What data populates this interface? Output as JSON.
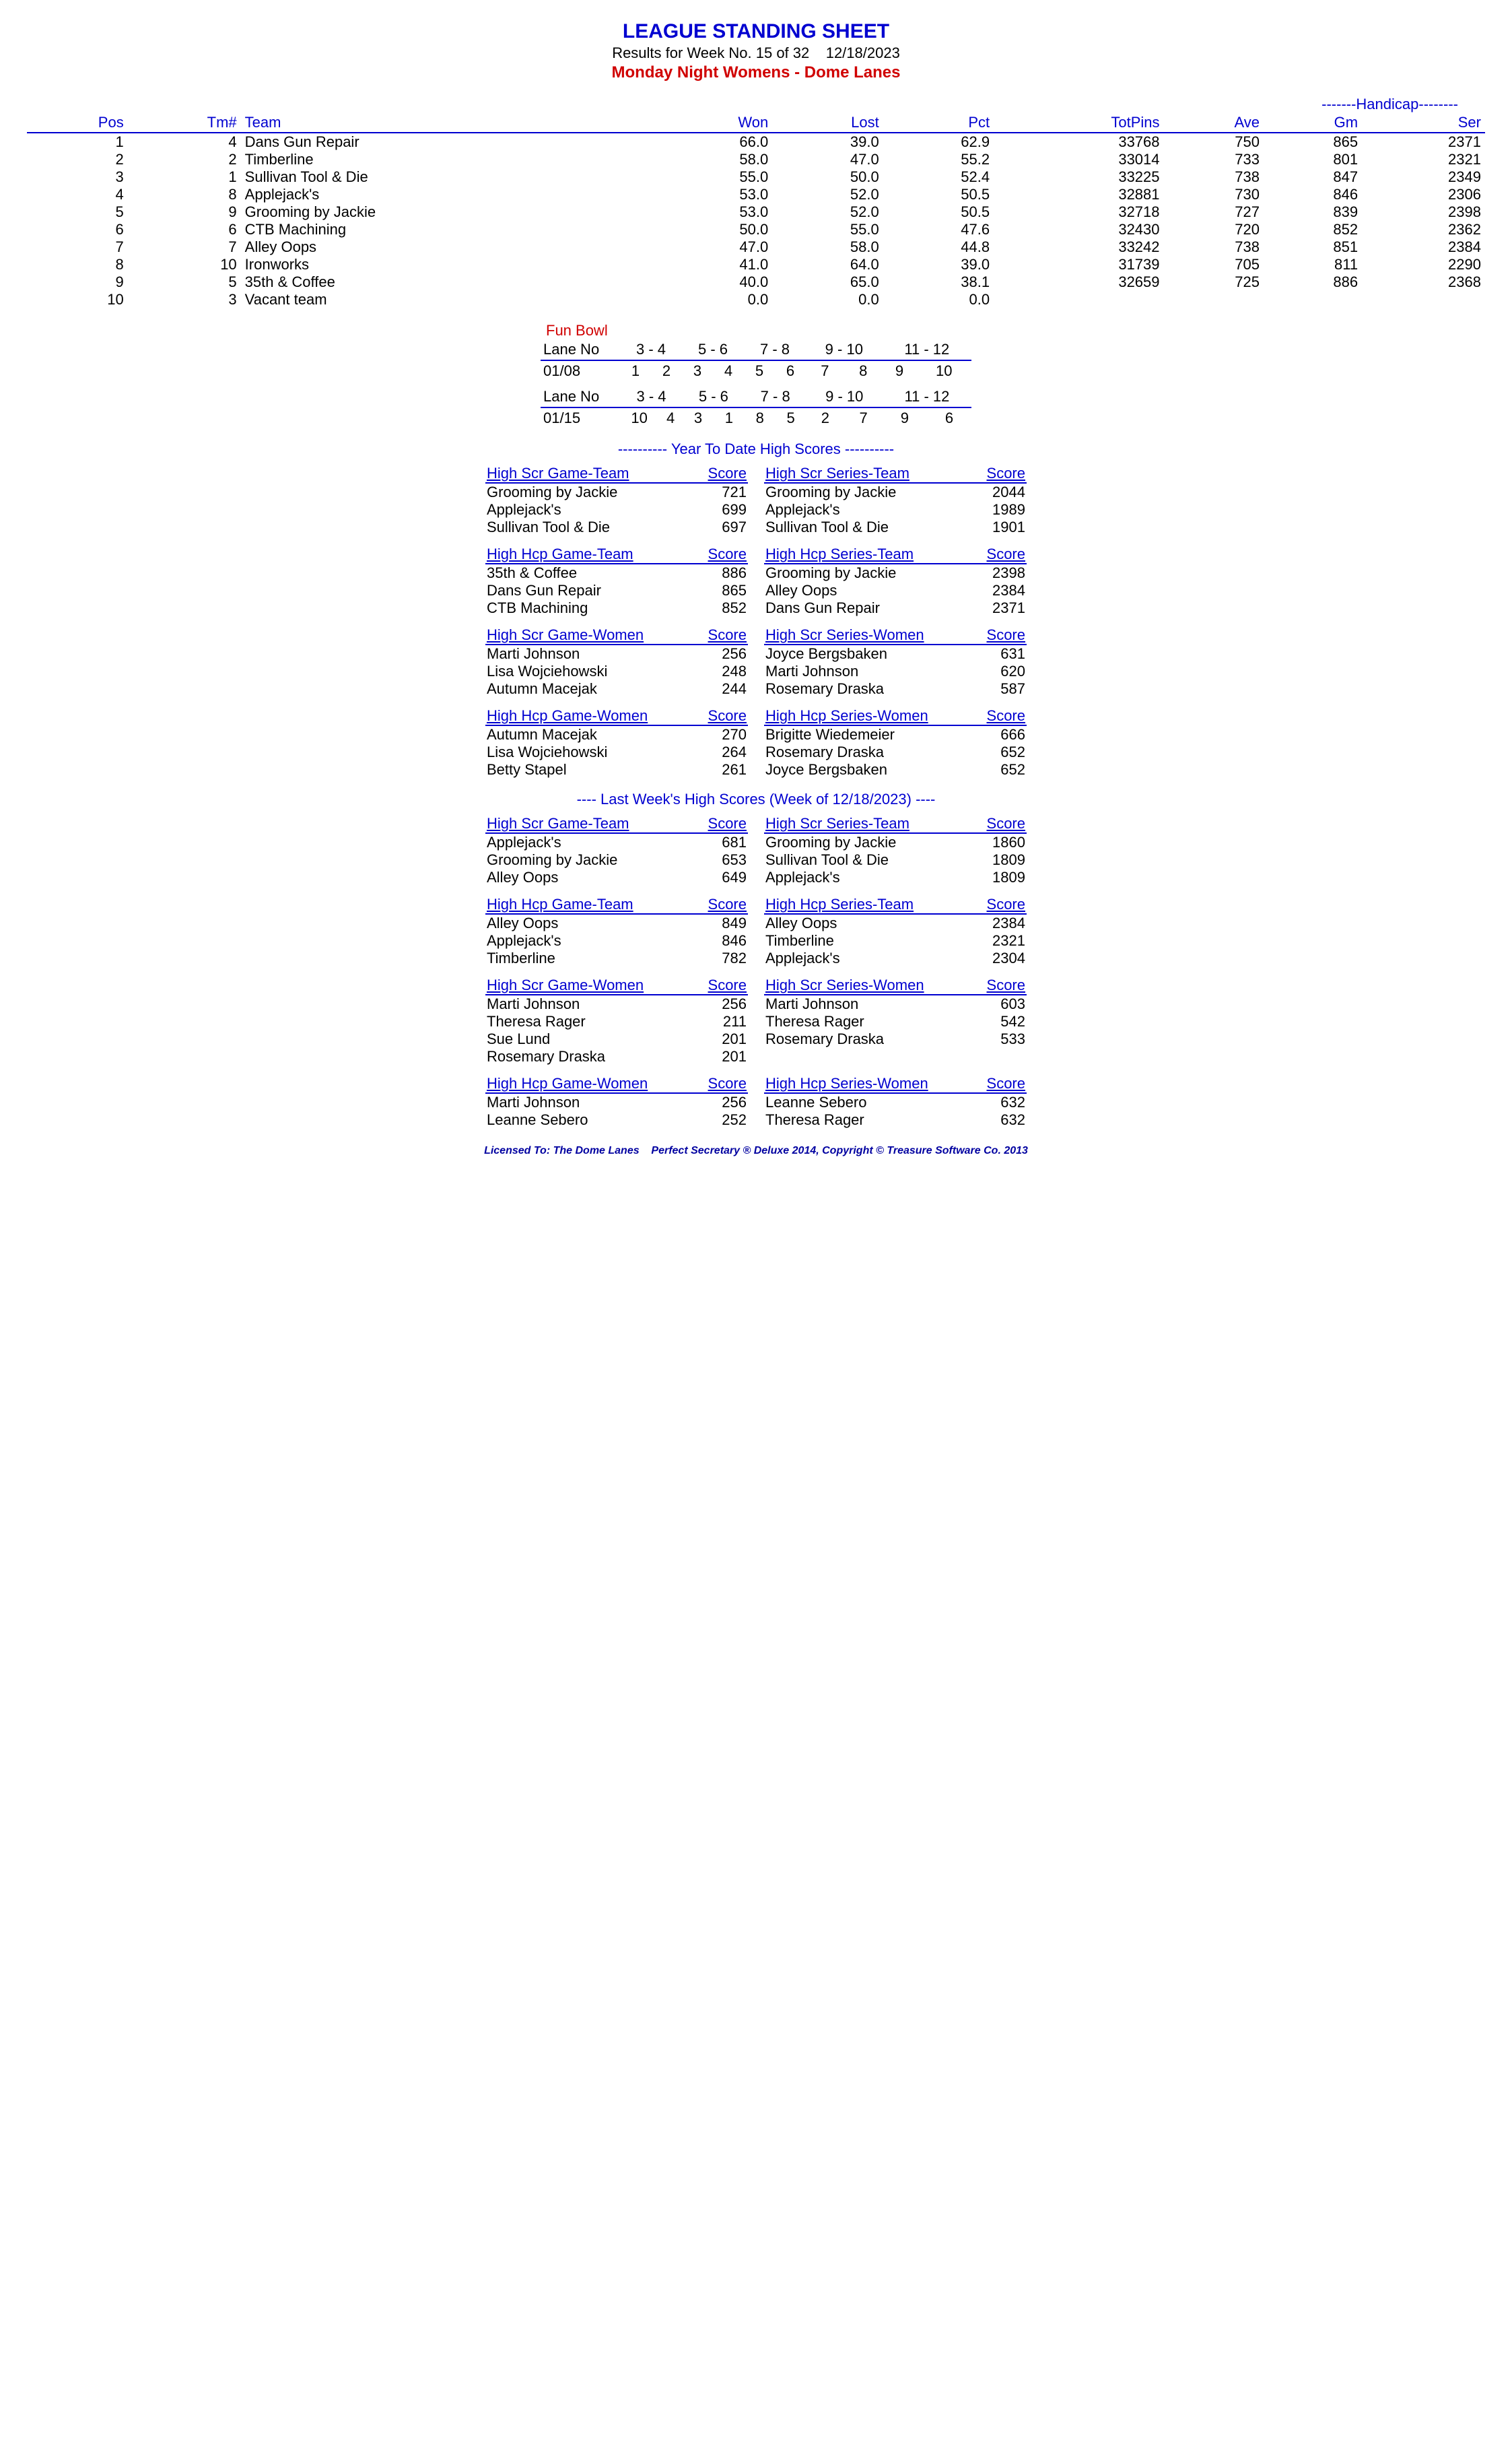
{
  "header": {
    "title": "LEAGUE STANDING SHEET",
    "subtitle": "Results for Week No. 15 of 32    12/18/2023",
    "league": "Monday Night Womens - Dome Lanes"
  },
  "standings": {
    "handicap_label": "-------Handicap--------",
    "cols": [
      "Pos",
      "Tm#",
      "Team",
      "Won",
      "Lost",
      "Pct",
      "TotPins",
      "Ave",
      "Gm",
      "Ser"
    ],
    "rows": [
      [
        "1",
        "4",
        "Dans Gun Repair",
        "66.0",
        "39.0",
        "62.9",
        "33768",
        "750",
        "865",
        "2371"
      ],
      [
        "2",
        "2",
        "Timberline",
        "58.0",
        "47.0",
        "55.2",
        "33014",
        "733",
        "801",
        "2321"
      ],
      [
        "3",
        "1",
        "Sullivan Tool & Die",
        "55.0",
        "50.0",
        "52.4",
        "33225",
        "738",
        "847",
        "2349"
      ],
      [
        "4",
        "8",
        "Applejack's",
        "53.0",
        "52.0",
        "50.5",
        "32881",
        "730",
        "846",
        "2306"
      ],
      [
        "5",
        "9",
        "Grooming by Jackie",
        "53.0",
        "52.0",
        "50.5",
        "32718",
        "727",
        "839",
        "2398"
      ],
      [
        "6",
        "6",
        "CTB Machining",
        "50.0",
        "55.0",
        "47.6",
        "32430",
        "720",
        "852",
        "2362"
      ],
      [
        "7",
        "7",
        "Alley Oops",
        "47.0",
        "58.0",
        "44.8",
        "33242",
        "738",
        "851",
        "2384"
      ],
      [
        "8",
        "10",
        "Ironworks",
        "41.0",
        "64.0",
        "39.0",
        "31739",
        "705",
        "811",
        "2290"
      ],
      [
        "9",
        "5",
        "35th & Coffee",
        "40.0",
        "65.0",
        "38.1",
        "32659",
        "725",
        "886",
        "2368"
      ],
      [
        "10",
        "3",
        "Vacant team",
        "0.0",
        "0.0",
        "0.0",
        "",
        "",
        "",
        ""
      ]
    ]
  },
  "funbowl": {
    "title": "Fun Bowl",
    "lane_label": "Lane No",
    "lane_headers": [
      "3 -  4",
      "5 -  6",
      "7 -  8",
      "9 - 10",
      "11 - 12"
    ],
    "weeks": [
      {
        "date": "01/08",
        "pairs": [
          [
            "1",
            "2"
          ],
          [
            "3",
            "4"
          ],
          [
            "5",
            "6"
          ],
          [
            "7",
            "8"
          ],
          [
            "9",
            "10"
          ]
        ]
      },
      {
        "date": "01/15",
        "pairs": [
          [
            "10",
            "4"
          ],
          [
            "3",
            "1"
          ],
          [
            "8",
            "5"
          ],
          [
            "2",
            "7"
          ],
          [
            "9",
            "6"
          ]
        ]
      }
    ]
  },
  "ytd_header": "----------  Year To Date High Scores  ----------",
  "lastweek_header": "----   Last Week's High Scores   (Week of 12/18/2023)   ----",
  "score_label": "Score",
  "ytd": [
    {
      "left": {
        "title": "High Scr Game-Team",
        "rows": [
          [
            "Grooming by Jackie",
            "721"
          ],
          [
            "Applejack's",
            "699"
          ],
          [
            "Sullivan Tool & Die",
            "697"
          ]
        ]
      },
      "right": {
        "title": "High Scr Series-Team",
        "rows": [
          [
            "Grooming by Jackie",
            "2044"
          ],
          [
            "Applejack's",
            "1989"
          ],
          [
            "Sullivan Tool & Die",
            "1901"
          ]
        ]
      }
    },
    {
      "left": {
        "title": "High Hcp Game-Team",
        "rows": [
          [
            "35th & Coffee",
            "886"
          ],
          [
            "Dans Gun Repair",
            "865"
          ],
          [
            "CTB Machining",
            "852"
          ]
        ]
      },
      "right": {
        "title": "High Hcp Series-Team",
        "rows": [
          [
            "Grooming by Jackie",
            "2398"
          ],
          [
            "Alley Oops",
            "2384"
          ],
          [
            "Dans Gun Repair",
            "2371"
          ]
        ]
      }
    },
    {
      "left": {
        "title": "High Scr Game-Women",
        "rows": [
          [
            "Marti Johnson",
            "256"
          ],
          [
            "Lisa Wojciehowski",
            "248"
          ],
          [
            "Autumn Macejak",
            "244"
          ]
        ]
      },
      "right": {
        "title": "High Scr Series-Women",
        "rows": [
          [
            "Joyce Bergsbaken",
            "631"
          ],
          [
            "Marti Johnson",
            "620"
          ],
          [
            "Rosemary Draska",
            "587"
          ]
        ]
      }
    },
    {
      "left": {
        "title": "High Hcp Game-Women",
        "rows": [
          [
            "Autumn Macejak",
            "270"
          ],
          [
            "Lisa Wojciehowski",
            "264"
          ],
          [
            "Betty Stapel",
            "261"
          ]
        ]
      },
      "right": {
        "title": "High Hcp Series-Women",
        "rows": [
          [
            "Brigitte Wiedemeier",
            "666"
          ],
          [
            "Rosemary Draska",
            "652"
          ],
          [
            "Joyce Bergsbaken",
            "652"
          ]
        ]
      }
    }
  ],
  "lastweek": [
    {
      "left": {
        "title": "High Scr Game-Team",
        "rows": [
          [
            "Applejack's",
            "681"
          ],
          [
            "Grooming by Jackie",
            "653"
          ],
          [
            "Alley Oops",
            "649"
          ]
        ]
      },
      "right": {
        "title": "High Scr Series-Team",
        "rows": [
          [
            "Grooming by Jackie",
            "1860"
          ],
          [
            "Sullivan Tool & Die",
            "1809"
          ],
          [
            "Applejack's",
            "1809"
          ]
        ]
      }
    },
    {
      "left": {
        "title": "High Hcp Game-Team",
        "rows": [
          [
            "Alley Oops",
            "849"
          ],
          [
            "Applejack's",
            "846"
          ],
          [
            "Timberline",
            "782"
          ]
        ]
      },
      "right": {
        "title": "High Hcp Series-Team",
        "rows": [
          [
            "Alley Oops",
            "2384"
          ],
          [
            "Timberline",
            "2321"
          ],
          [
            "Applejack's",
            "2304"
          ]
        ]
      }
    },
    {
      "left": {
        "title": "High Scr Game-Women",
        "rows": [
          [
            "Marti Johnson",
            "256"
          ],
          [
            "Theresa Rager",
            "211"
          ],
          [
            "Sue Lund",
            "201"
          ],
          [
            "Rosemary Draska",
            "201"
          ]
        ]
      },
      "right": {
        "title": "High Scr Series-Women",
        "rows": [
          [
            "Marti Johnson",
            "603"
          ],
          [
            "Theresa Rager",
            "542"
          ],
          [
            "Rosemary Draska",
            "533"
          ]
        ]
      }
    },
    {
      "left": {
        "title": "High Hcp Game-Women",
        "rows": [
          [
            "Marti Johnson",
            "256"
          ],
          [
            "Leanne Sebero",
            "252"
          ]
        ]
      },
      "right": {
        "title": "High Hcp Series-Women",
        "rows": [
          [
            "Leanne Sebero",
            "632"
          ],
          [
            "Theresa Rager",
            "632"
          ]
        ]
      }
    }
  ],
  "footer": "Licensed To: The Dome Lanes    Perfect Secretary ® Deluxe  2014, Copyright © Treasure Software Co. 2013"
}
